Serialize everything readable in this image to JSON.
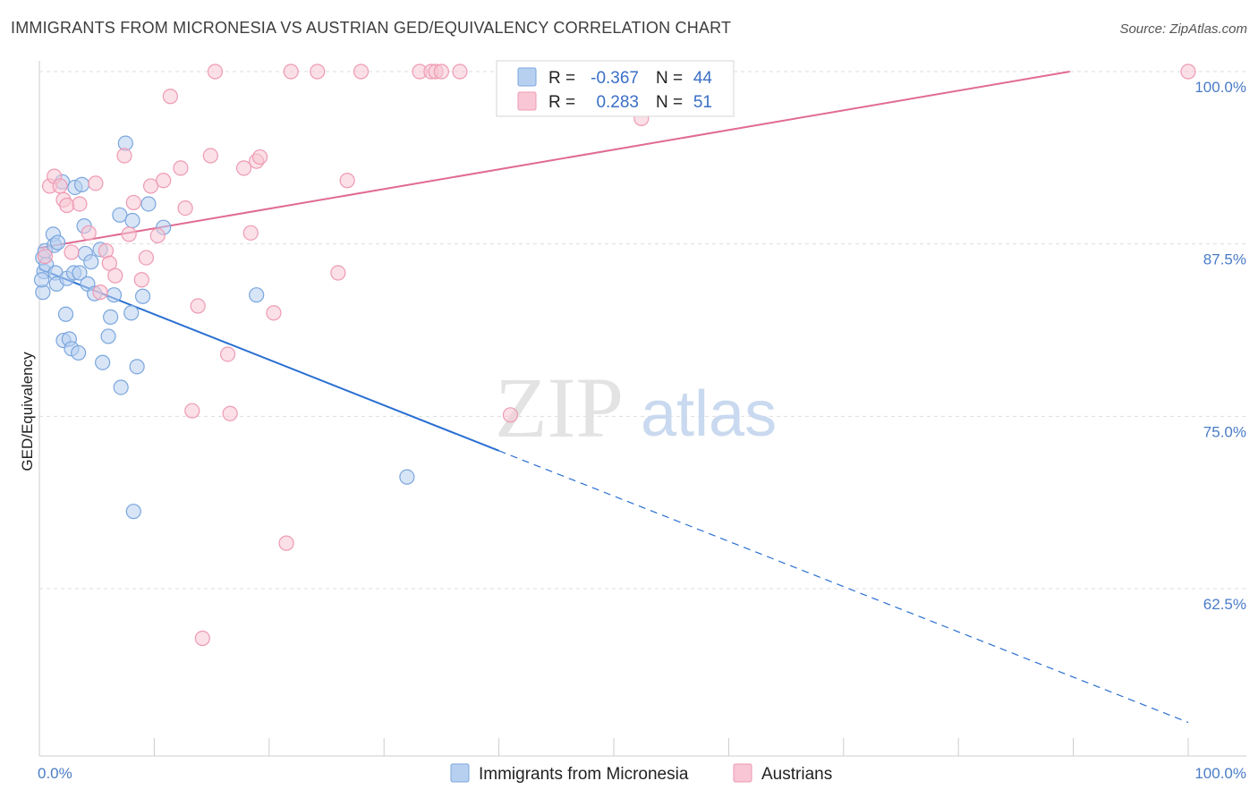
{
  "title": "IMMIGRANTS FROM MICRONESIA VS AUSTRIAN GED/EQUIVALENCY CORRELATION CHART",
  "source": "Source: ZipAtlas.com",
  "colors": {
    "blue_fill": "#b8d0f0",
    "blue_stroke": "#7aa6dd",
    "blue_line": "#2a6fd1",
    "pink_fill": "#f8c6d4",
    "pink_stroke": "#ee9ab3",
    "pink_line": "#e06b93",
    "grid": "#dddddd"
  },
  "legend": {
    "r_label": "R =",
    "n_label": "N =",
    "rows": [
      {
        "series": "Immigrants from Micronesia",
        "r": "-0.367",
        "n": "44"
      },
      {
        "series": "Austrians",
        "r": "0.283",
        "n": "51"
      }
    ]
  },
  "watermark": {
    "zip": "ZIP",
    "atlas": "atlas"
  },
  "chart_data": {
    "type": "scatter",
    "title": "IMMIGRANTS FROM MICRONESIA VS AUSTRIAN GED/EQUIVALENCY CORRELATION CHART",
    "xlabel": "",
    "ylabel": "GED/Equivalency",
    "xlim": [
      0,
      100
    ],
    "ylim": [
      51.5,
      100.8
    ],
    "x_tick_labels": [
      "0.0%",
      "100.0%"
    ],
    "y_ticks": [
      62.5,
      75.0,
      87.5,
      100.0
    ],
    "y_tick_labels": [
      "62.5%",
      "75.0%",
      "87.5%",
      "100.0%"
    ],
    "grid": true,
    "legend_position": "bottom",
    "series": [
      {
        "name": "Immigrants from Micronesia",
        "color": "#b8d0f0",
        "points": [
          [
            0.3,
            84.0
          ],
          [
            0.3,
            86.5
          ],
          [
            0.4,
            85.5
          ],
          [
            0.5,
            87.0
          ],
          [
            0.6,
            86.0
          ],
          [
            1.2,
            88.2
          ],
          [
            1.3,
            87.4
          ],
          [
            1.4,
            85.4
          ],
          [
            1.5,
            84.6
          ],
          [
            1.6,
            87.6
          ],
          [
            2.0,
            92.0
          ],
          [
            2.1,
            80.5
          ],
          [
            2.3,
            82.4
          ],
          [
            2.4,
            85.0
          ],
          [
            2.6,
            80.6
          ],
          [
            2.8,
            79.9
          ],
          [
            3.0,
            85.4
          ],
          [
            3.1,
            91.6
          ],
          [
            3.4,
            79.6
          ],
          [
            3.5,
            85.4
          ],
          [
            3.7,
            91.8
          ],
          [
            3.9,
            88.8
          ],
          [
            4.0,
            86.8
          ],
          [
            4.2,
            84.6
          ],
          [
            4.5,
            86.2
          ],
          [
            4.8,
            83.9
          ],
          [
            5.3,
            87.1
          ],
          [
            5.5,
            78.9
          ],
          [
            6.0,
            80.8
          ],
          [
            6.2,
            82.2
          ],
          [
            6.5,
            83.8
          ],
          [
            7.0,
            89.6
          ],
          [
            7.1,
            77.1
          ],
          [
            7.5,
            94.8
          ],
          [
            8.1,
            89.2
          ],
          [
            8.0,
            82.5
          ],
          [
            8.2,
            68.1
          ],
          [
            8.5,
            78.6
          ],
          [
            9.0,
            83.7
          ],
          [
            9.5,
            90.4
          ],
          [
            10.8,
            88.7
          ],
          [
            18.9,
            83.8
          ],
          [
            32.0,
            70.6
          ],
          [
            0.2,
            84.9
          ]
        ]
      },
      {
        "name": "Austrians",
        "color": "#f8c6d4",
        "points": [
          [
            0.5,
            86.6
          ],
          [
            0.9,
            91.7
          ],
          [
            1.3,
            92.4
          ],
          [
            1.8,
            91.7
          ],
          [
            2.1,
            90.7
          ],
          [
            2.4,
            90.3
          ],
          [
            2.8,
            86.9
          ],
          [
            3.5,
            90.4
          ],
          [
            4.3,
            88.3
          ],
          [
            4.9,
            91.9
          ],
          [
            5.3,
            84.0
          ],
          [
            5.8,
            87.0
          ],
          [
            6.1,
            86.1
          ],
          [
            6.6,
            85.2
          ],
          [
            7.4,
            93.9
          ],
          [
            7.8,
            88.2
          ],
          [
            8.2,
            90.5
          ],
          [
            8.9,
            84.9
          ],
          [
            9.3,
            86.5
          ],
          [
            9.7,
            91.7
          ],
          [
            10.3,
            88.1
          ],
          [
            10.8,
            92.1
          ],
          [
            11.4,
            98.2
          ],
          [
            12.3,
            93.0
          ],
          [
            12.7,
            90.1
          ],
          [
            13.3,
            75.4
          ],
          [
            13.8,
            83.0
          ],
          [
            14.2,
            58.9
          ],
          [
            14.9,
            93.9
          ],
          [
            15.3,
            100.0
          ],
          [
            16.4,
            79.5
          ],
          [
            16.6,
            75.2
          ],
          [
            17.8,
            93.0
          ],
          [
            18.4,
            88.3
          ],
          [
            18.9,
            93.5
          ],
          [
            19.2,
            93.8
          ],
          [
            20.4,
            82.5
          ],
          [
            21.5,
            65.8
          ],
          [
            21.9,
            100.0
          ],
          [
            24.2,
            100.0
          ],
          [
            26.0,
            85.4
          ],
          [
            26.8,
            92.1
          ],
          [
            28.0,
            100.0
          ],
          [
            33.1,
            100.0
          ],
          [
            34.1,
            100.0
          ],
          [
            34.5,
            100.0
          ],
          [
            35.0,
            100.0
          ],
          [
            36.6,
            100.0
          ],
          [
            41.0,
            75.1
          ],
          [
            52.4,
            96.6
          ],
          [
            100.0,
            100.0
          ]
        ]
      }
    ],
    "trend_lines": [
      {
        "series": "Immigrants from Micronesia",
        "x_start": 0.0,
        "y_start": 85.7,
        "x_solid_end": 40.0,
        "y_solid_end": 72.5,
        "x_end": 100.0,
        "y_end": 52.8
      },
      {
        "series": "Austrians",
        "x_start": 0.0,
        "y_start": 87.2,
        "x_end": 89.7,
        "y_end": 100.0
      }
    ]
  }
}
